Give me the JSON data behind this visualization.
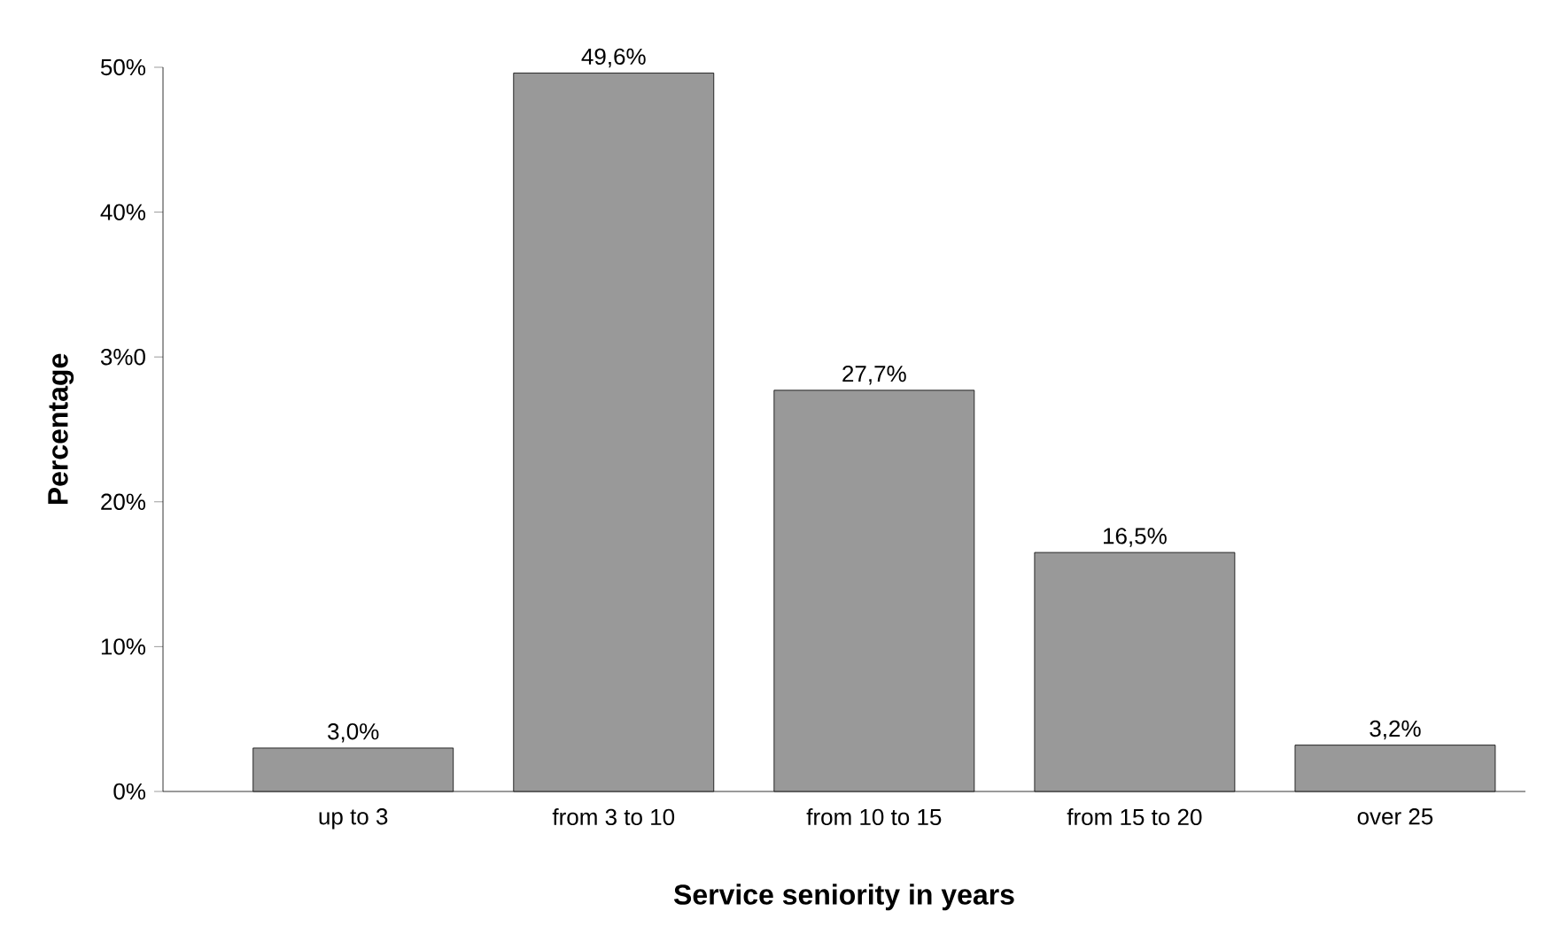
{
  "chart_data": {
    "type": "bar",
    "xlabel": "Service seniority in years",
    "ylabel": "Percentage",
    "categories": [
      "up to 3",
      "from 3 to 10",
      "from 10 to 15",
      "from 15 to 20",
      "over 25"
    ],
    "values": [
      3.0,
      49.6,
      27.7,
      16.5,
      3.2
    ],
    "value_labels": [
      "3,0%",
      "49,6%",
      "27,7%",
      "16,5%",
      "3,2%"
    ],
    "color": "#999999",
    "ylim": [
      0,
      50
    ],
    "yticks": [
      {
        "value": 0,
        "label": "0%"
      },
      {
        "value": 10,
        "label": "10%"
      },
      {
        "value": 20,
        "label": "20%"
      },
      {
        "value": 30,
        "label": "3%0"
      },
      {
        "value": 40,
        "label": "40%"
      },
      {
        "value": 50,
        "label": "50%"
      }
    ]
  }
}
